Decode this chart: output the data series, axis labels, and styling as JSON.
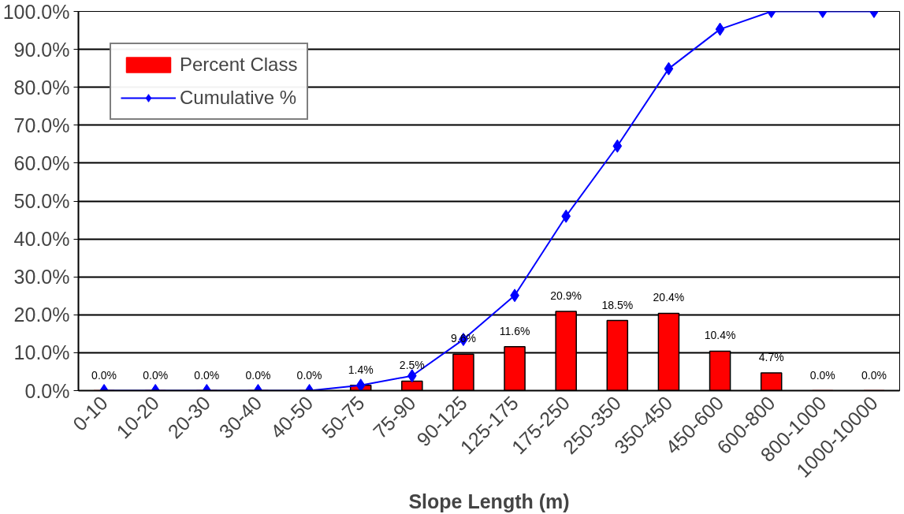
{
  "chart_data": {
    "type": "bar",
    "xlabel": "Slope Length (m)",
    "categories": [
      "0-10",
      "10-20",
      "20-30",
      "30-40",
      "40-50",
      "50-75",
      "75-90",
      "90-125",
      "125-175",
      "175-250",
      "250-350",
      "350-450",
      "450-600",
      "600-800",
      "800-1000",
      "1000-10000"
    ],
    "series": [
      {
        "name": "Percent Class",
        "color": "#ff0000",
        "values": [
          0,
          0,
          0,
          0,
          0,
          1.4,
          2.5,
          9.6,
          11.6,
          20.9,
          18.5,
          20.4,
          10.4,
          4.7,
          0,
          0
        ],
        "value_labels": [
          "0.0%",
          "0.0%",
          "0.0%",
          "0.0%",
          "0.0%",
          "1.4%",
          "2.5%",
          "9.6%",
          "11.6%",
          "20.9%",
          "18.5%",
          "20.4%",
          "10.4%",
          "4.7%",
          "0.0%",
          "0.0%"
        ]
      },
      {
        "name": "Cumulative %",
        "type": "line",
        "color": "#0000ff",
        "marker": "diamond",
        "values": [
          0,
          0,
          0,
          0,
          0,
          1.4,
          3.9,
          13.5,
          25.1,
          46.0,
          64.5,
          84.9,
          95.3,
          100,
          100,
          100
        ]
      }
    ],
    "ylim": [
      0,
      100
    ],
    "yticks": [
      {
        "value": 0,
        "label": "0.0%"
      },
      {
        "value": 10,
        "label": "10.0%"
      },
      {
        "value": 20,
        "label": "20.0%"
      },
      {
        "value": 30,
        "label": "30.0%"
      },
      {
        "value": 40,
        "label": "40.0%"
      },
      {
        "value": 50,
        "label": "50.0%"
      },
      {
        "value": 60,
        "label": "60.0%"
      },
      {
        "value": 70,
        "label": "70.0%"
      },
      {
        "value": 80,
        "label": "80.0%"
      },
      {
        "value": 90,
        "label": "90.0%"
      },
      {
        "value": 100,
        "label": "100.0%"
      }
    ],
    "grid": "y",
    "legend": "top left"
  }
}
